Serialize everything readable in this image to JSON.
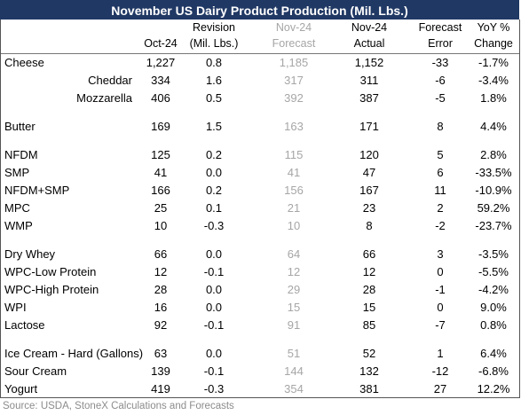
{
  "title": "November US Dairy Product Production (Mil. Lbs.)",
  "columns": [
    {
      "lines": [
        "Oct-24"
      ]
    },
    {
      "lines": [
        "Revision",
        "(Mil. Lbs.)"
      ]
    },
    {
      "lines": [
        "Nov-24",
        "Forecast"
      ]
    },
    {
      "lines": [
        "Nov-24",
        "Actual"
      ]
    },
    {
      "lines": [
        "Forecast",
        "Error"
      ]
    },
    {
      "lines": [
        "YoY %",
        "Change"
      ]
    }
  ],
  "groups": [
    [
      {
        "label": "Cheese",
        "values": [
          "1,227",
          "0.8",
          "1,185",
          "1,152",
          "-33",
          "-1.7%"
        ],
        "children": [
          {
            "label": "Cheddar",
            "values": [
              "334",
              "1.6",
              "317",
              "311",
              "-6",
              "-3.4%"
            ]
          },
          {
            "label": "Mozzarella",
            "values": [
              "406",
              "0.5",
              "392",
              "387",
              "-5",
              "1.8%"
            ]
          }
        ]
      }
    ],
    [
      {
        "label": "Butter",
        "values": [
          "169",
          "1.5",
          "163",
          "171",
          "8",
          "4.4%"
        ]
      }
    ],
    [
      {
        "label": "NFDM",
        "values": [
          "125",
          "0.2",
          "115",
          "120",
          "5",
          "2.8%"
        ]
      },
      {
        "label": "SMP",
        "values": [
          "41",
          "0.0",
          "41",
          "47",
          "6",
          "-33.5%"
        ]
      },
      {
        "label": "NFDM+SMP",
        "values": [
          "166",
          "0.2",
          "156",
          "167",
          "11",
          "-10.9%"
        ]
      },
      {
        "label": "MPC",
        "values": [
          "25",
          "0.1",
          "21",
          "23",
          "2",
          "59.2%"
        ]
      },
      {
        "label": "WMP",
        "values": [
          "10",
          "-0.3",
          "10",
          "8",
          "-2",
          "-23.7%"
        ]
      }
    ],
    [
      {
        "label": "Dry Whey",
        "values": [
          "66",
          "0.0",
          "64",
          "66",
          "3",
          "-3.5%"
        ]
      },
      {
        "label": "WPC-Low Protein",
        "values": [
          "12",
          "-0.1",
          "12",
          "12",
          "0",
          "-5.5%"
        ]
      },
      {
        "label": "WPC-High Protein",
        "values": [
          "28",
          "0.0",
          "29",
          "28",
          "-1",
          "-4.2%"
        ]
      },
      {
        "label": "WPI",
        "values": [
          "16",
          "0.0",
          "15",
          "15",
          "0",
          "9.0%"
        ]
      },
      {
        "label": "Lactose",
        "values": [
          "92",
          "-0.1",
          "91",
          "85",
          "-7",
          "0.8%"
        ]
      }
    ],
    [
      {
        "label": "Ice Cream - Hard (Gallons)",
        "values": [
          "63",
          "0.0",
          "51",
          "52",
          "1",
          "6.4%"
        ]
      },
      {
        "label": "Sour Cream",
        "values": [
          "139",
          "-0.1",
          "144",
          "132",
          "-12",
          "-6.8%"
        ]
      },
      {
        "label": "Yogurt",
        "values": [
          "419",
          "-0.3",
          "354",
          "381",
          "27",
          "12.2%"
        ]
      }
    ]
  ],
  "source": "Source: USDA, StoneX Calculations and Forecasts"
}
